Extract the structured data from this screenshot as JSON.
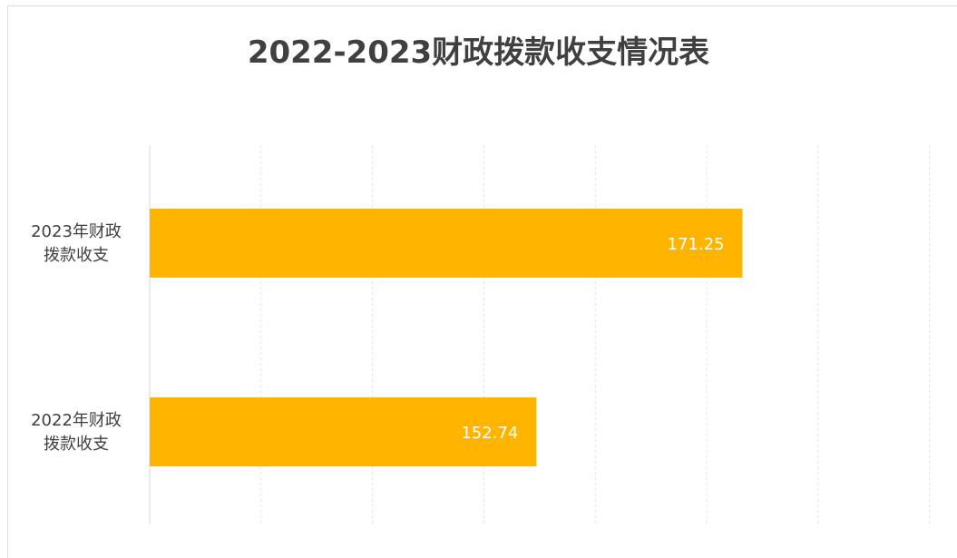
{
  "chart_data": {
    "type": "bar",
    "orientation": "horizontal",
    "title": "2022-2023财政拨款收支情况表",
    "categories": [
      [
        "2023年财政",
        "拨款收支"
      ],
      [
        "2022年财政",
        "拨款收支"
      ]
    ],
    "values": [
      171.25,
      152.74
    ],
    "data_labels": [
      "171.25",
      "152.74"
    ],
    "xlim": [
      118,
      188
    ],
    "grid": true,
    "legend": "none",
    "bar_color": "#FFB400"
  }
}
